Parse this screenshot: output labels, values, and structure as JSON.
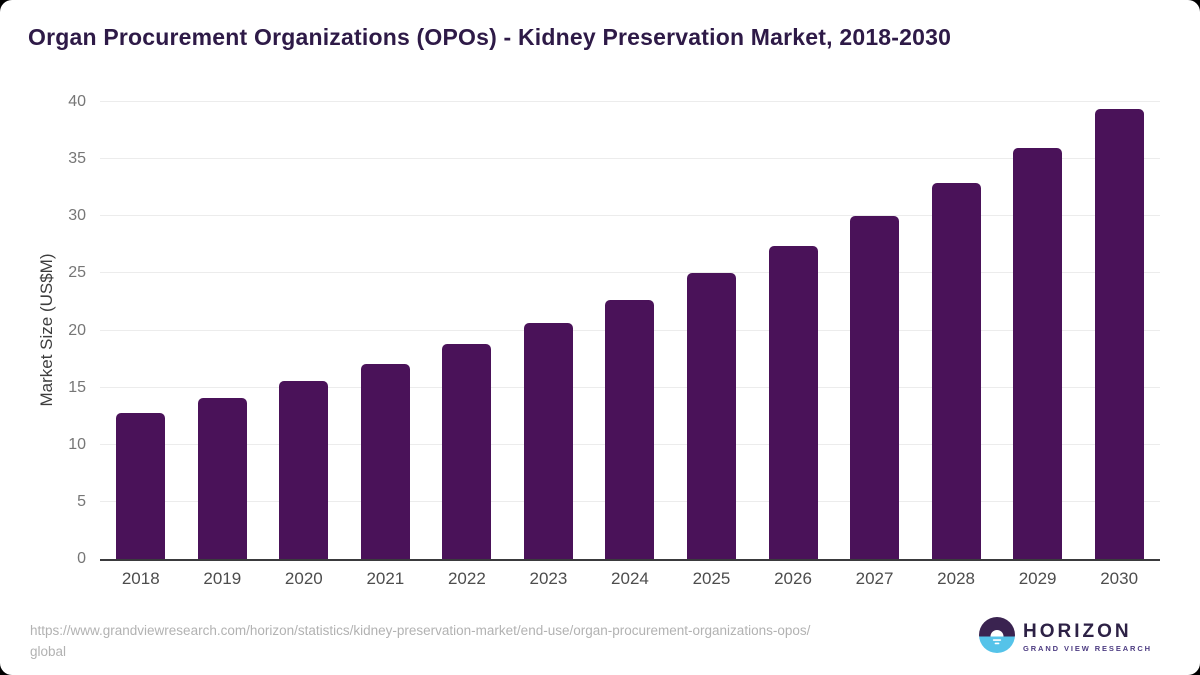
{
  "page": {
    "title": "Organ Procurement Organizations (OPOs) - Kidney Preservation Market, 2018-2030"
  },
  "chart_data": {
    "type": "bar",
    "title": "Organ Procurement Organizations (OPOs) - Kidney Preservation Market, 2018-2030",
    "categories": [
      "2018",
      "2019",
      "2020",
      "2021",
      "2022",
      "2023",
      "2024",
      "2025",
      "2026",
      "2027",
      "2028",
      "2029",
      "2030"
    ],
    "values": [
      12.8,
      14.1,
      15.6,
      17.1,
      18.8,
      20.7,
      22.7,
      25.0,
      27.4,
      30.0,
      32.9,
      36.0,
      39.4
    ],
    "xlabel": "",
    "ylabel": "Market Size (US$M)",
    "ylim": [
      0,
      40
    ],
    "ytick_interval": 5,
    "grid": true,
    "legend": "none",
    "bar_color": "#4a1259"
  },
  "footer": {
    "source_url_line1": "https://www.grandviewresearch.com/horizon/statistics/kidney-preservation-market/end-use/organ-procurement-organizations-opos/",
    "source_url_line2": "global",
    "logo": {
      "wordmark": "HORIZON",
      "subtitle": "GRAND VIEW RESEARCH",
      "icon_top_color": "#3a2350",
      "icon_bottom_color": "#55c3e9"
    }
  }
}
